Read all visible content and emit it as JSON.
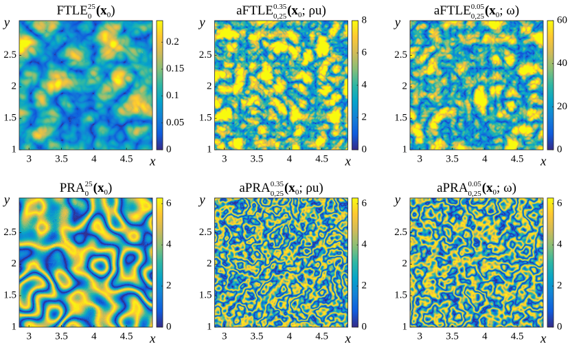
{
  "chart_data": [
    {
      "type": "heatmap",
      "title_main": "FTLE",
      "title_sup": "25",
      "title_sub": "0",
      "title_arg": "(x",
      "title_arg_sub": "0",
      "title_tail": ")",
      "xlabel": "x",
      "ylabel": "y",
      "xlim": [
        2.85,
        4.9
      ],
      "ylim": [
        1,
        3.05
      ],
      "xticks": [
        3,
        3.5,
        4,
        4.5
      ],
      "yticks": [
        1,
        1.5,
        2,
        2.5
      ],
      "colormap": "parula",
      "clim": [
        0,
        0.24
      ],
      "cticks": [
        0,
        0.05,
        0.1,
        0.15,
        0.2
      ]
    },
    {
      "type": "heatmap",
      "title_main": "aFTLE",
      "title_sup": "0.35",
      "title_sub": "0,25",
      "title_arg": "(x",
      "title_arg_sub": "0",
      "title_tail": "; ρu)",
      "xlabel": "x",
      "ylabel": "y",
      "xlim": [
        2.85,
        4.9
      ],
      "ylim": [
        1,
        3.05
      ],
      "xticks": [
        3,
        3.5,
        4,
        4.5
      ],
      "yticks": [
        1,
        1.5,
        2,
        2.5
      ],
      "colormap": "parula",
      "clim": [
        0,
        8
      ],
      "cticks": [
        0,
        2,
        4,
        6,
        8
      ]
    },
    {
      "type": "heatmap",
      "title_main": "aFTLE",
      "title_sup": "0.05",
      "title_sub": "0,25",
      "title_arg": "(x",
      "title_arg_sub": "0",
      "title_tail": "; ω)",
      "xlabel": "x",
      "ylabel": "y",
      "xlim": [
        2.85,
        4.9
      ],
      "ylim": [
        1,
        3.05
      ],
      "xticks": [
        3,
        3.5,
        4,
        4.5
      ],
      "yticks": [
        1,
        1.5,
        2,
        2.5
      ],
      "colormap": "parula",
      "clim": [
        0,
        60
      ],
      "cticks": [
        0,
        20,
        40,
        60
      ]
    },
    {
      "type": "heatmap",
      "title_main": "PRA",
      "title_sup": "25",
      "title_sub": "0",
      "title_arg": "(x",
      "title_arg_sub": "0",
      "title_tail": ")",
      "xlabel": "x",
      "ylabel": "y",
      "xlim": [
        2.85,
        4.9
      ],
      "ylim": [
        1,
        3.05
      ],
      "xticks": [
        3,
        3.5,
        4,
        4.5
      ],
      "yticks": [
        1,
        1.5,
        2,
        2.5
      ],
      "colormap": "parula",
      "clim": [
        0,
        6.28
      ],
      "cticks": [
        0,
        2,
        4,
        6
      ]
    },
    {
      "type": "heatmap",
      "title_main": "aPRA",
      "title_sup": "0.35",
      "title_sub": "0,25",
      "title_arg": "(x",
      "title_arg_sub": "0",
      "title_tail": "; ρu)",
      "xlabel": "x",
      "ylabel": "y",
      "xlim": [
        2.85,
        4.9
      ],
      "ylim": [
        1,
        3.05
      ],
      "xticks": [
        3,
        3.5,
        4,
        4.5
      ],
      "yticks": [
        1,
        1.5,
        2,
        2.5
      ],
      "colormap": "parula",
      "clim": [
        0,
        6.28
      ],
      "cticks": [
        0,
        2,
        4,
        6
      ]
    },
    {
      "type": "heatmap",
      "title_main": "aPRA",
      "title_sup": "0.05",
      "title_sub": "0,25",
      "title_arg": "(x",
      "title_arg_sub": "0",
      "title_tail": "; ω)",
      "xlabel": "x",
      "ylabel": "y",
      "xlim": [
        2.85,
        4.9
      ],
      "ylim": [
        1,
        3.05
      ],
      "xticks": [
        3,
        3.5,
        4,
        4.5
      ],
      "yticks": [
        1,
        1.5,
        2,
        2.5
      ],
      "colormap": "parula",
      "clim": [
        0,
        6.28
      ],
      "cticks": [
        0,
        2,
        4,
        6
      ]
    }
  ]
}
